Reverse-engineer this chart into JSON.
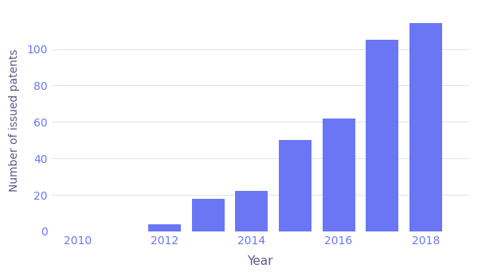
{
  "years": [
    2010,
    2011,
    2012,
    2013,
    2014,
    2015,
    2016,
    2017,
    2018
  ],
  "values": [
    0,
    0,
    4,
    18,
    22,
    50,
    62,
    105,
    114
  ],
  "bar_color": "#6b76f5",
  "xlabel": "Year",
  "ylabel": "Number of issued patents",
  "xticks": [
    2010,
    2012,
    2014,
    2016,
    2018
  ],
  "yticks": [
    0,
    20,
    40,
    60,
    80,
    100
  ],
  "ylim": [
    0,
    122
  ],
  "xlim": [
    2009.4,
    2019.0
  ],
  "background_color": "#ffffff",
  "grid_color": "#dde6f7",
  "tick_color": "#6b76f5",
  "label_color": "#5a5a8a",
  "xlabel_fontsize": 11,
  "ylabel_fontsize": 10,
  "bar_width": 0.75
}
